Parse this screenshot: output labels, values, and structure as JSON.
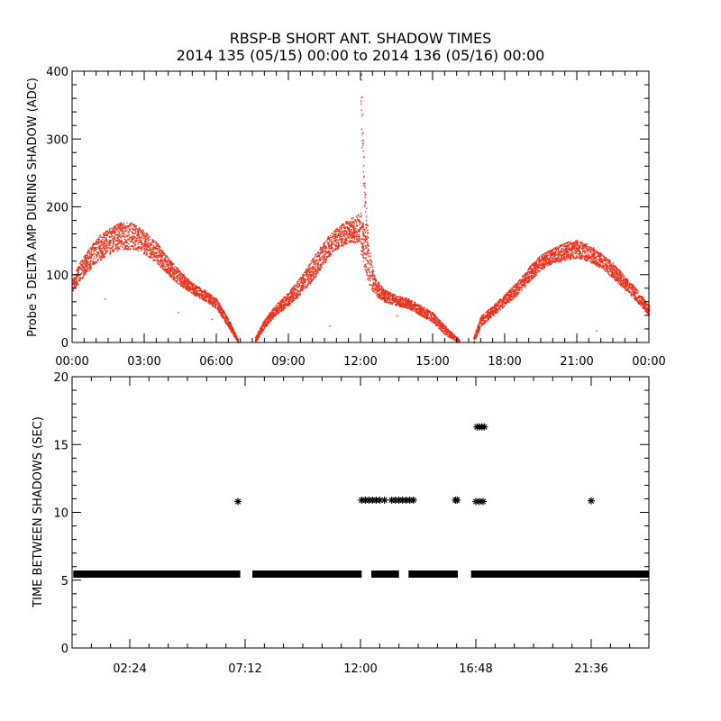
{
  "title_line1": "RBSP-B SHORT ANT. SHADOW TIMES",
  "title_line2": "2014 135 (05/15) 00:00 to 2014 136 (05/16) 00:00",
  "chart_data": [
    {
      "type": "scatter",
      "ylabel": "Probe 5 DELTA AMP DURING SHADOW (ADC)",
      "xlabel": "",
      "x_units": "hours",
      "xlim": [
        0,
        24
      ],
      "ylim": [
        0,
        400
      ],
      "x_tick_labels": [
        "00:00",
        "03:00",
        "06:00",
        "09:00",
        "12:00",
        "15:00",
        "18:00",
        "21:00",
        "00:00"
      ],
      "y_tick_labels": [
        "0",
        "100",
        "200",
        "300",
        "400"
      ],
      "grid": false,
      "series": [
        {
          "color": "#e8321e",
          "bands": [
            {
              "x": [
                0,
                0.5,
                1,
                1.5,
                2,
                2.5,
                3,
                3.5,
                4,
                4.5,
                5,
                5.5,
                6,
                6.5,
                6.9
              ],
              "low": [
                75,
                100,
                118,
                130,
                138,
                138,
                130,
                118,
                100,
                84,
                72,
                62,
                50,
                22,
                0
              ],
              "high": [
                100,
                130,
                155,
                168,
                178,
                178,
                165,
                148,
                125,
                105,
                88,
                78,
                65,
                35,
                5
              ]
            },
            {
              "x": [
                7.6,
                8,
                8.5,
                9,
                9.5,
                10,
                10.5,
                11,
                11.5,
                12
              ],
              "low": [
                0,
                22,
                42,
                55,
                72,
                92,
                118,
                138,
                148,
                148
              ],
              "high": [
                8,
                35,
                58,
                75,
                98,
                125,
                152,
                170,
                182,
                192
              ]
            },
            {
              "x": [
                12,
                12.3,
                12.6,
                13,
                13.5,
                14,
                14.5,
                15,
                15.5,
                16.1
              ],
              "low": [
                130,
                88,
                70,
                60,
                55,
                50,
                40,
                30,
                12,
                0
              ],
              "high": [
                190,
                150,
                95,
                78,
                70,
                65,
                55,
                45,
                25,
                5
              ]
            },
            {
              "x": [
                16.7,
                17,
                17.5,
                18,
                18.5,
                19,
                19.5,
                20,
                20.5,
                21,
                21.5,
                22,
                22.5,
                23,
                23.5,
                24
              ],
              "low": [
                0,
                25,
                40,
                55,
                70,
                90,
                108,
                118,
                122,
                125,
                120,
                110,
                95,
                78,
                60,
                40
              ],
              "high": [
                10,
                40,
                55,
                72,
                90,
                112,
                130,
                140,
                148,
                152,
                145,
                132,
                118,
                98,
                78,
                55
              ]
            }
          ],
          "spike": {
            "x": [
              12.0,
              12.02,
              12.04,
              12.06,
              12.08,
              12.1,
              12.12,
              12.14,
              12.16,
              12.18,
              12.2,
              12.22,
              12.24,
              12.26,
              12.28,
              12.3
            ],
            "y": [
              400,
              370,
              345,
              320,
              300,
              285,
              265,
              250,
              232,
              220,
              208,
              200,
              190,
              178,
              165,
              150
            ]
          },
          "outliers": {
            "x": [
              1.35,
              4.4,
              5.8,
              10.7,
              13.5,
              21.8
            ],
            "y": [
              65,
              45,
              35,
              25,
              40,
              18
            ]
          }
        }
      ]
    },
    {
      "type": "scatter",
      "ylabel": "TIME BETWEEN SHADOWS (SEC)",
      "xlabel": "",
      "x_units": "hours",
      "xlim": [
        0,
        24
      ],
      "ylim": [
        0,
        20
      ],
      "x_tick_labels": [
        "02:24",
        "07:12",
        "12:00",
        "16:48",
        "21:36"
      ],
      "y_tick_labels": [
        "0",
        "5",
        "10",
        "15",
        "20"
      ],
      "grid": false,
      "marker": "*",
      "series": [
        {
          "baseline_value": 5.45,
          "baseline_segments": [
            [
              0.05,
              7.0
            ],
            [
              7.5,
              12.05
            ],
            [
              12.45,
              13.6
            ],
            [
              14.0,
              16.05
            ],
            [
              16.6,
              24.0
            ]
          ],
          "points": {
            "x": [
              6.9,
              12.05,
              12.2,
              12.35,
              12.5,
              12.65,
              12.8,
              13.0,
              13.3,
              13.45,
              13.6,
              13.75,
              13.9,
              14.05,
              14.2,
              15.95,
              16.02,
              16.8,
              16.95,
              17.1,
              16.85,
              16.95,
              17.05,
              17.15,
              21.6
            ],
            "y": [
              10.8,
              10.9,
              10.9,
              10.9,
              10.9,
              10.9,
              10.9,
              10.9,
              10.9,
              10.9,
              10.9,
              10.9,
              10.9,
              10.9,
              10.9,
              10.9,
              10.9,
              10.8,
              10.8,
              10.8,
              16.3,
              16.3,
              16.3,
              16.3,
              10.85
            ]
          }
        }
      ]
    }
  ]
}
